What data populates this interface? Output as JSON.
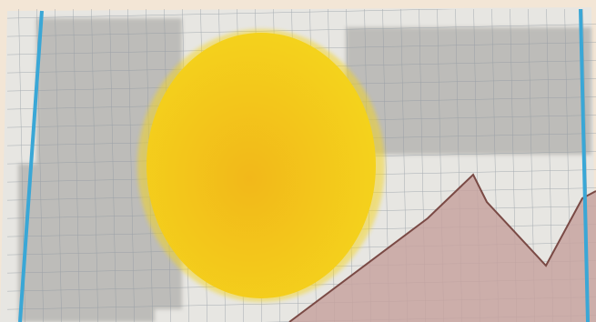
{
  "image": {
    "colors": {
      "backdrop": "#f3e6d6",
      "paper": "#e7e6e2",
      "pencil_shading": "#9c9b98",
      "grid_line": "#8f98a0",
      "margin_line": "#3aa7d6",
      "sun_fill": "#f4d41c",
      "sun_core": "#f2b81a",
      "mountain_fill": "#c7a3a0",
      "mountain_outline": "#7a4a45"
    }
  }
}
